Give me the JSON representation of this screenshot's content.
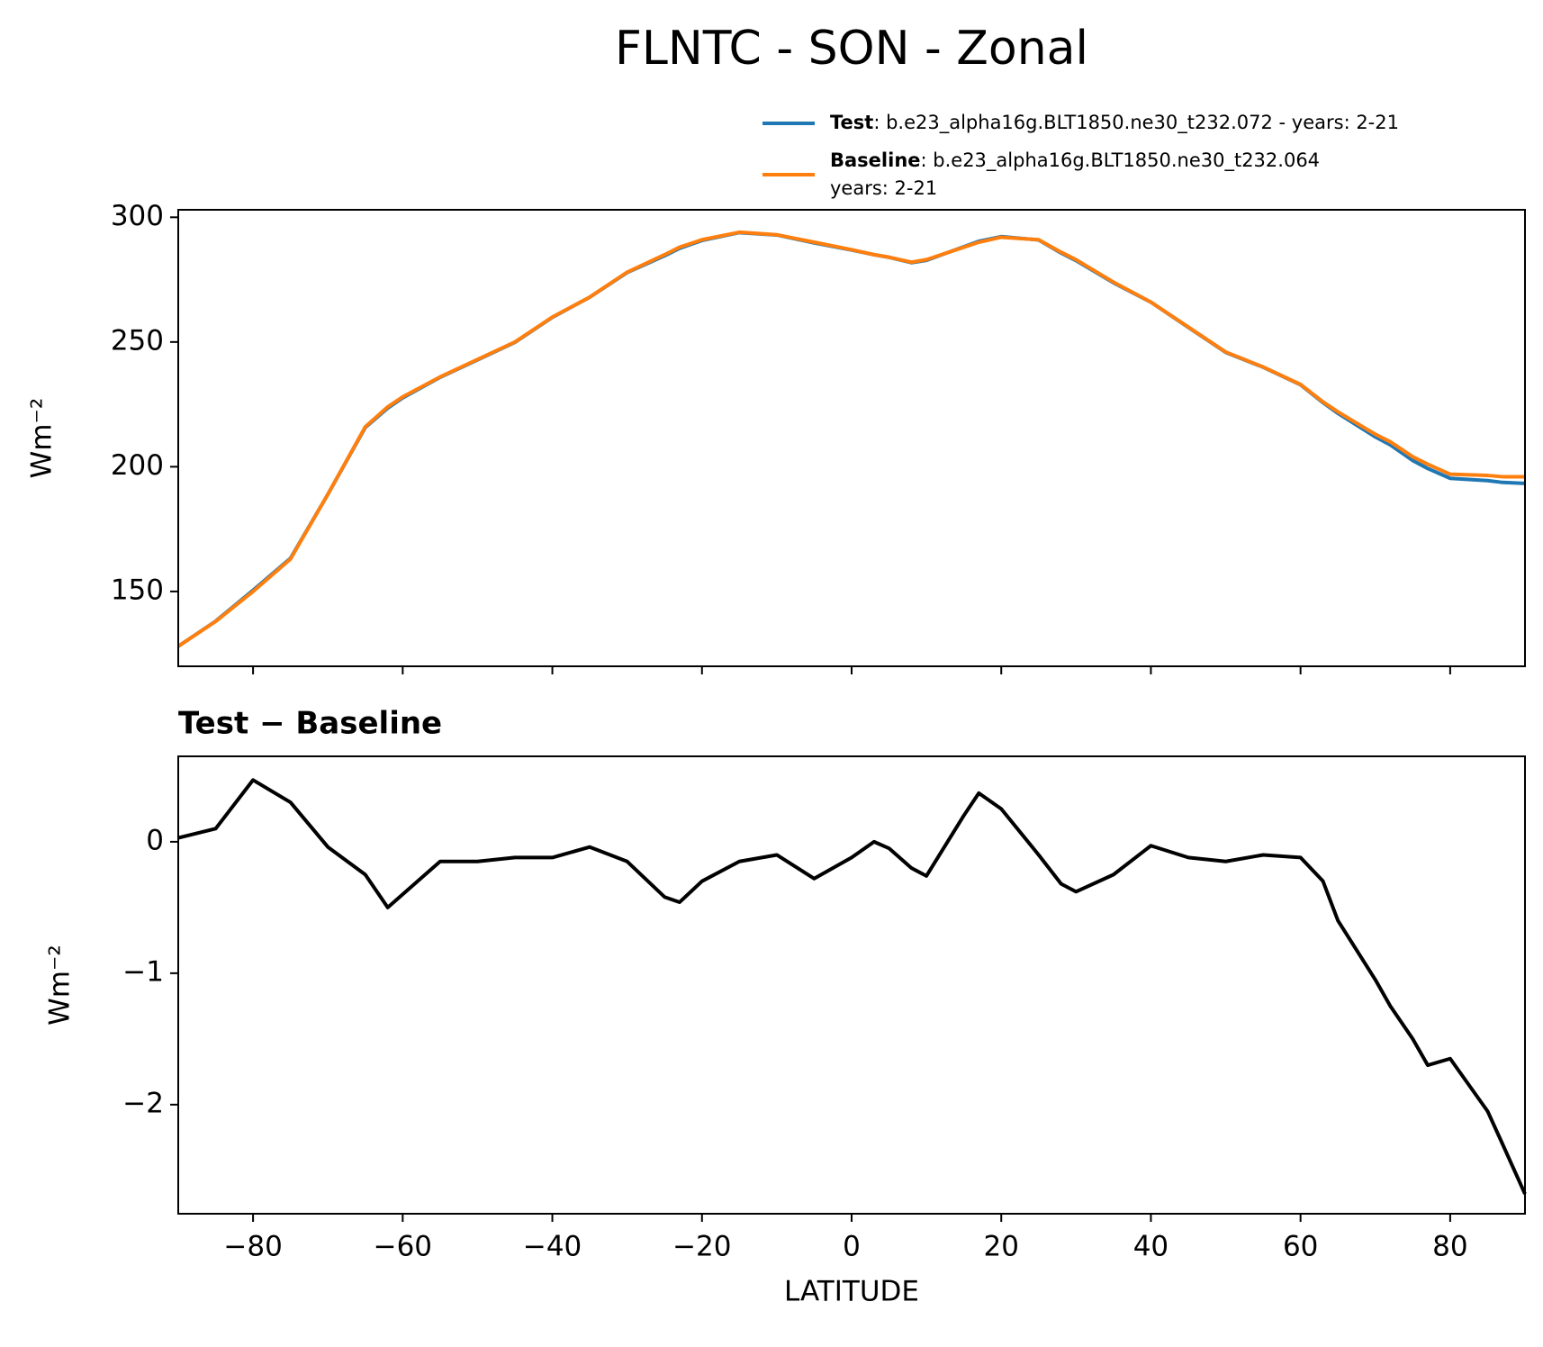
{
  "chart_data": [
    {
      "type": "line",
      "title": "FLNTC - SON - Zonal",
      "ylabel": "Wm⁻²",
      "x": [
        -90,
        -85,
        -80,
        -75,
        -70,
        -65,
        -62,
        -60,
        -55,
        -50,
        -45,
        -40,
        -35,
        -30,
        -25,
        -23,
        -20,
        -15,
        -10,
        -5,
        0,
        3,
        5,
        8,
        10,
        15,
        17,
        20,
        25,
        28,
        30,
        35,
        40,
        45,
        50,
        55,
        60,
        63,
        65,
        70,
        72,
        75,
        77,
        80,
        85,
        87,
        90
      ],
      "xlim": [
        -90,
        90
      ],
      "xticks": [
        {
          "value": -80,
          "label": "−80"
        },
        {
          "value": -60,
          "label": "−60"
        },
        {
          "value": -40,
          "label": "−40"
        },
        {
          "value": -20,
          "label": "−20"
        },
        0,
        20,
        40,
        60,
        80
      ],
      "ylim": [
        120,
        303
      ],
      "yticks": [
        150,
        200,
        250,
        300
      ],
      "legend": "upper right",
      "series": [
        {
          "name": "Test",
          "label": [
            ": b.e23_alpha16g.BLT1850.ne30_t232.072 - years: 2-21"
          ],
          "color": "#1f77b4",
          "values": [
            128.03,
            138.1,
            150.47,
            163.3,
            188.96,
            215.75,
            223.5,
            227.6,
            235.85,
            242.85,
            249.88,
            259.88,
            267.96,
            277.85,
            284.58,
            287.54,
            290.7,
            293.85,
            292.9,
            289.72,
            286.88,
            285,
            283.95,
            281.8,
            282.74,
            288.2,
            290.37,
            292.25,
            290.9,
            285.68,
            282.62,
            273.75,
            265.97,
            255.88,
            245.85,
            239.9,
            232.88,
            225.7,
            221.4,
            211.95,
            208.75,
            202.5,
            199.3,
            195.35,
            194.45,
            193.7,
            193.32
          ]
        },
        {
          "name": "Baseline",
          "label": [
            ": b.e23_alpha16g.BLT1850.ne30_t232.064",
            "years: 2-21"
          ],
          "color": "#ff7f0e",
          "values": [
            128,
            138,
            150,
            163,
            189,
            216,
            224,
            228,
            236,
            243,
            250,
            260,
            268,
            278,
            285,
            288,
            291,
            294,
            293,
            290,
            287,
            285,
            284,
            282,
            283,
            288,
            290,
            292,
            291,
            286,
            283,
            274,
            266,
            256,
            246,
            240,
            233,
            226,
            222,
            213,
            210,
            204,
            201,
            197,
            196.5,
            196,
            196
          ]
        }
      ]
    },
    {
      "type": "line",
      "title": "Test − Baseline",
      "ylabel": "Wm⁻²",
      "xlabel": "LATITUDE",
      "x": [
        -90,
        -85,
        -80,
        -75,
        -70,
        -65,
        -62,
        -60,
        -55,
        -50,
        -45,
        -40,
        -35,
        -30,
        -25,
        -23,
        -20,
        -15,
        -10,
        -5,
        0,
        3,
        5,
        8,
        10,
        15,
        17,
        20,
        25,
        28,
        30,
        35,
        40,
        45,
        50,
        55,
        60,
        63,
        65,
        70,
        72,
        75,
        77,
        80,
        85,
        87,
        90
      ],
      "xlim": [
        -90,
        90
      ],
      "xticks": [
        {
          "value": -80,
          "label": "−80"
        },
        {
          "value": -60,
          "label": "−60"
        },
        {
          "value": -40,
          "label": "−40"
        },
        {
          "value": -20,
          "label": "−20"
        },
        0,
        20,
        40,
        60,
        80
      ],
      "ylim": [
        -2.83,
        0.65
      ],
      "yticks": [
        {
          "value": -2,
          "label": "−2"
        },
        {
          "value": -1,
          "label": "−1"
        },
        0
      ],
      "series": [
        {
          "color": "#000000",
          "values": [
            0.03,
            0.1,
            0.47,
            0.3,
            -0.04,
            -0.25,
            -0.5,
            -0.4,
            -0.15,
            -0.15,
            -0.12,
            -0.12,
            -0.04,
            -0.15,
            -0.42,
            -0.46,
            -0.3,
            -0.15,
            -0.1,
            -0.28,
            -0.12,
            0,
            -0.05,
            -0.2,
            -0.26,
            0.2,
            0.37,
            0.25,
            -0.1,
            -0.32,
            -0.38,
            -0.25,
            -0.03,
            -0.12,
            -0.15,
            -0.1,
            -0.12,
            -0.3,
            -0.6,
            -1.05,
            -1.25,
            -1.5,
            -1.7,
            -1.65,
            -2.05,
            -2.3,
            -2.68
          ]
        }
      ]
    }
  ]
}
